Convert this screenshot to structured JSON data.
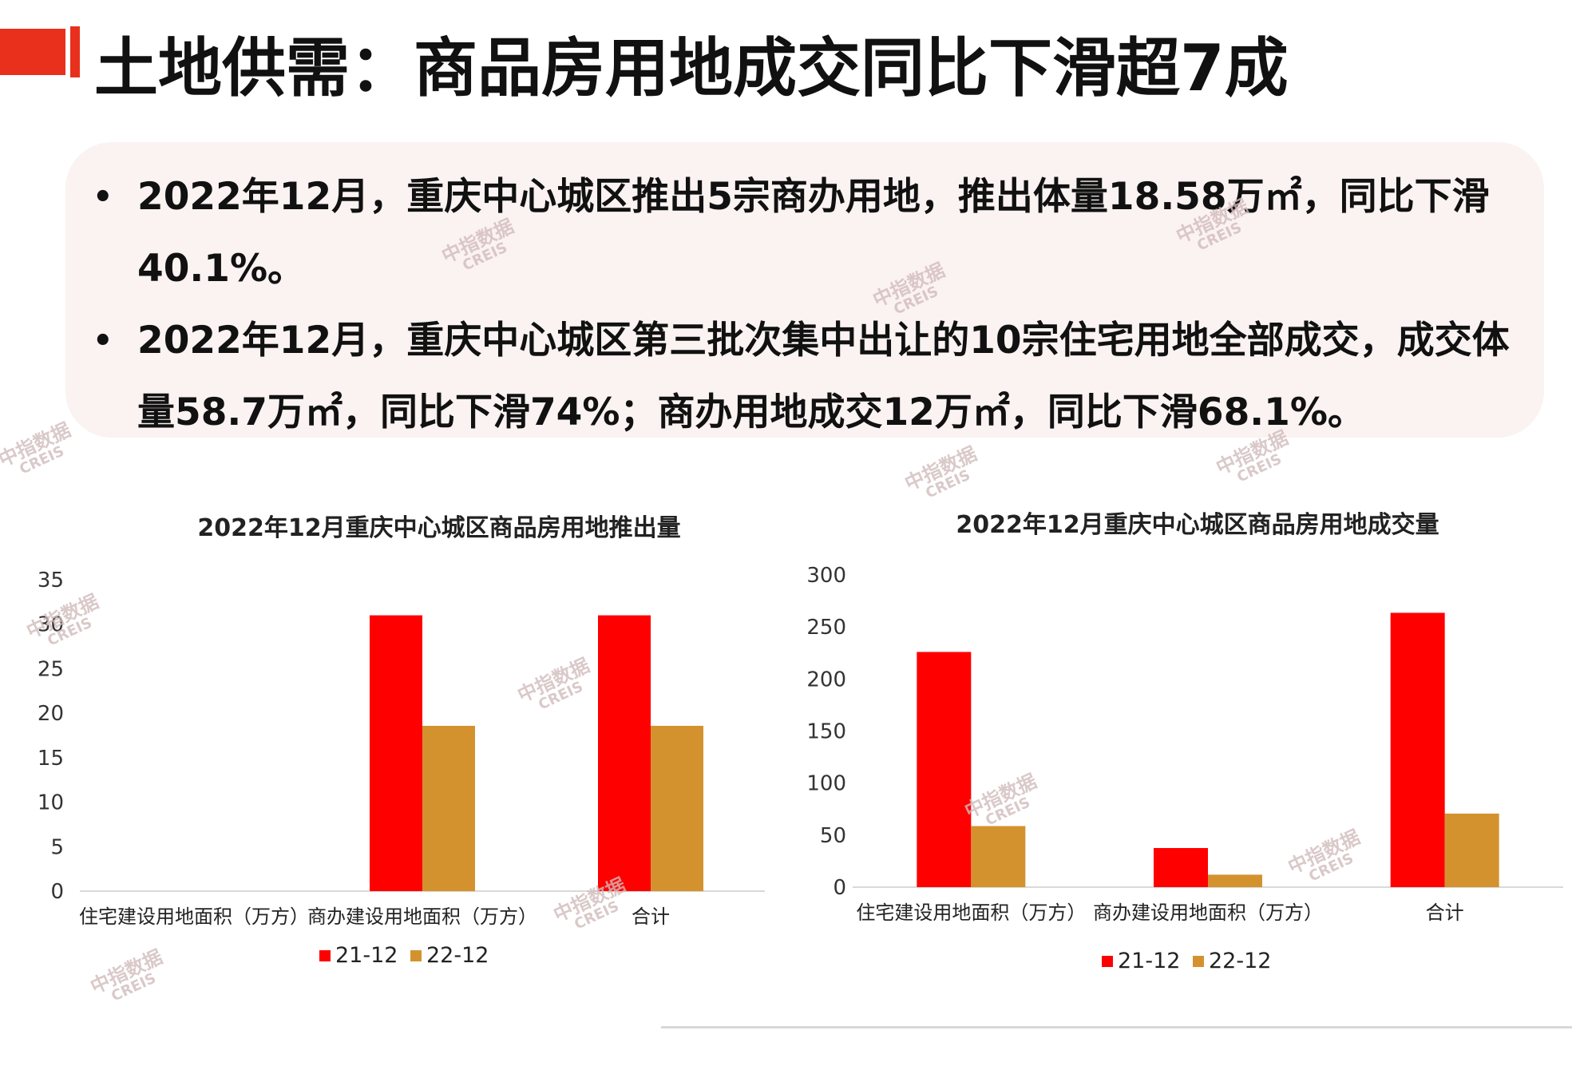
{
  "page": {
    "title": "土地供需：商品房用地成交同比下滑超7成",
    "bullets": [
      "2022年12月，重庆中心城区推出5宗商办用地，推出体量18.58万㎡，同比下滑40.1%。",
      "2022年12月，重庆中心城区第三批次集中出让的10宗住宅用地全部成交，成交体量58.7万㎡，同比下滑74%；商办用地成交12万㎡，同比下滑68.1%。"
    ],
    "bullet_symbol": "•",
    "watermark": {
      "cn": "中指数据",
      "en": "CREIS"
    }
  },
  "colors": {
    "accent": "#e8301c",
    "series_21_12": "#ff0000",
    "series_22_12": "#d4922f"
  },
  "chart_data": [
    {
      "type": "bar",
      "title": "2022年12月重庆中心城区商品房用地推出量",
      "categories": [
        "住宅建设用地面积（万方）",
        "商办建设用地面积（万方）",
        "合计"
      ],
      "series": [
        {
          "name": "21-12",
          "values": [
            0,
            31,
            31
          ]
        },
        {
          "name": "22-12",
          "values": [
            0,
            18.58,
            18.58
          ]
        }
      ],
      "ylim": [
        0,
        35
      ],
      "yticks": [
        "0",
        "5",
        "10",
        "15",
        "20",
        "25",
        "30",
        "35"
      ],
      "legend": "bottom"
    },
    {
      "type": "bar",
      "title": "2022年12月重庆中心城区商品房用地成交量",
      "categories": [
        "住宅建设用地面积（万方）",
        "商办建设用地面积（万方）",
        "合计"
      ],
      "series": [
        {
          "name": "21-12",
          "values": [
            226,
            37.6,
            263.6
          ]
        },
        {
          "name": "22-12",
          "values": [
            58.7,
            12,
            70.7
          ]
        }
      ],
      "ylim": [
        0,
        300
      ],
      "yticks": [
        "0",
        "50",
        "100",
        "150",
        "200",
        "250",
        "300"
      ],
      "legend": "bottom"
    }
  ]
}
